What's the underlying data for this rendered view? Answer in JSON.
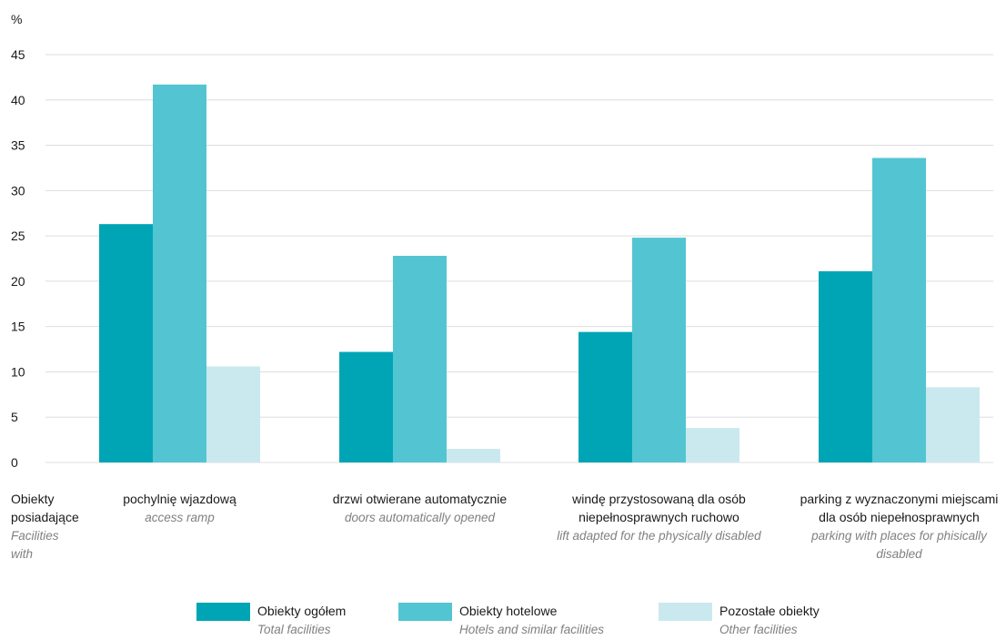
{
  "chart_data": {
    "type": "bar",
    "ylabel": "%",
    "ylim": [
      0,
      45
    ],
    "yticks": [
      "0",
      "5",
      "10",
      "15",
      "20",
      "25",
      "30",
      "35",
      "40",
      "45"
    ],
    "grid": true,
    "legend_position": "bottom",
    "row_header": {
      "pl": [
        "Obiekty",
        "posiadające"
      ],
      "en": [
        "Facilities",
        "with"
      ]
    },
    "categories": [
      {
        "pl": [
          "pochylnię wjazdową"
        ],
        "en": [
          "access ramp"
        ]
      },
      {
        "pl": [
          "drzwi otwierane automatycznie"
        ],
        "en": [
          "doors automatically opened"
        ]
      },
      {
        "pl": [
          "windę przystosowaną dla osób",
          "niepełnosprawnych ruchowo"
        ],
        "en": [
          "lift adapted for the physically disabled"
        ]
      },
      {
        "pl": [
          "parking z wyznaczonymi miejscami",
          "dla osób niepełnosprawnych"
        ],
        "en": [
          "parking with places for phisically",
          "disabled"
        ]
      }
    ],
    "series": [
      {
        "name": "Obiekty ogółem",
        "name_en": "Total facilities",
        "color": "#00a5b5",
        "values": [
          26.3,
          12.2,
          14.4,
          21.1
        ]
      },
      {
        "name": "Obiekty hotelowe",
        "name_en": "Hotels and similar facilities",
        "color": "#53c5d2",
        "values": [
          41.7,
          22.8,
          24.8,
          33.6
        ]
      },
      {
        "name": "Pozostałe obiekty",
        "name_en": "Other facilities",
        "color": "#c9e9ef",
        "values": [
          10.6,
          1.5,
          3.8,
          8.3
        ]
      }
    ]
  }
}
